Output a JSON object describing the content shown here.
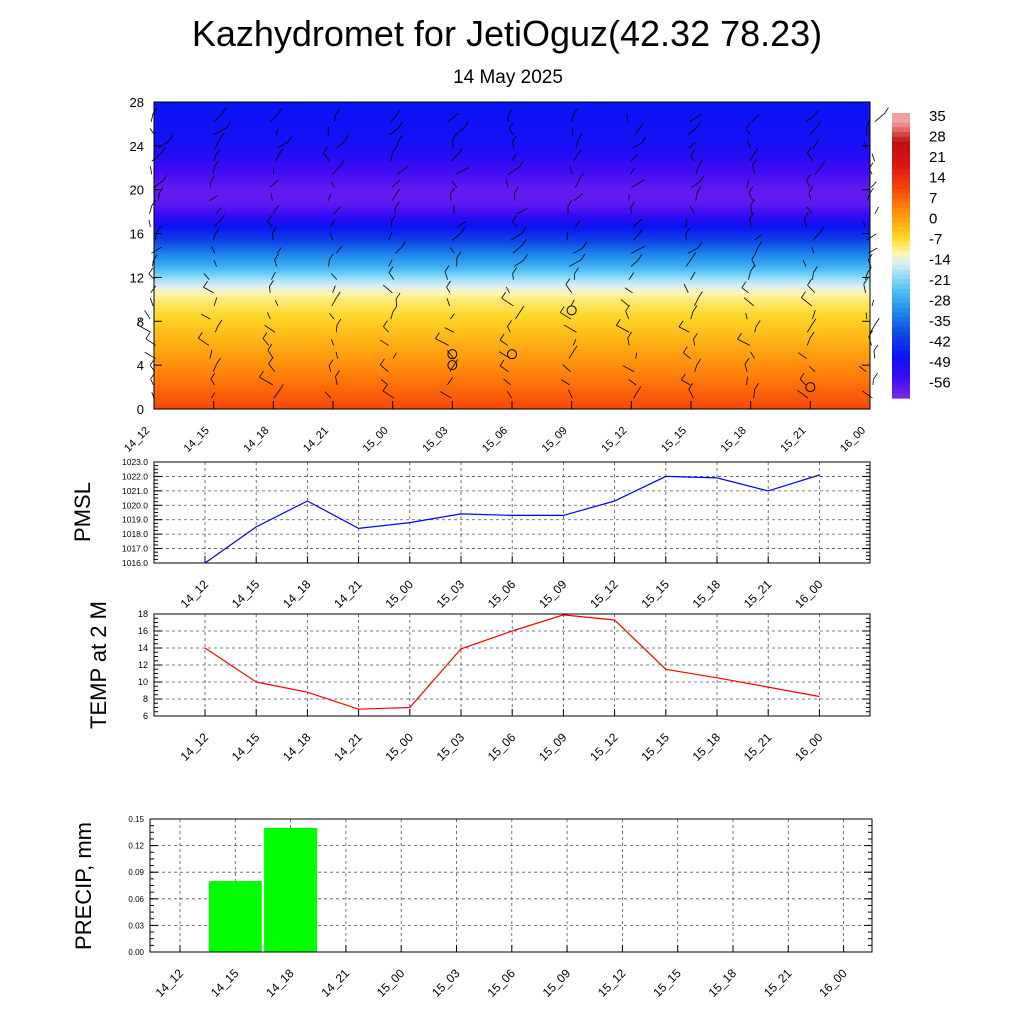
{
  "header": {
    "title": "Kazhydromet for JetiOguz(42.32 78.23)",
    "subtitle": "14 May 2025"
  },
  "colors": {
    "pmsl_line": "#0000ff",
    "temp_line": "#ff0000",
    "precip_bar": "#00ff00",
    "wind_barb": "#000000"
  },
  "chart_data": [
    {
      "type": "heatmap",
      "name": "upper-air temperature cross-section with wind barbs",
      "x_categories": [
        "14_12",
        "14_15",
        "14_18",
        "14_21",
        "15_00",
        "15_03",
        "15_06",
        "15_09",
        "15_12",
        "15_15",
        "15_18",
        "15_21",
        "16_00"
      ],
      "y_ticks": [
        0,
        4,
        8,
        12,
        16,
        20,
        24,
        28
      ],
      "ylim": [
        0,
        28
      ],
      "colorbar": {
        "labels": [
          "35",
          "28",
          "21",
          "14",
          "7",
          "0",
          "-7",
          "-14",
          "-21",
          "-28",
          "-35",
          "-42",
          "-49",
          "-56"
        ],
        "range": [
          -60,
          38
        ]
      },
      "temperature_profile": {
        "levels": [
          0,
          2,
          4,
          6,
          8,
          10,
          11,
          12,
          13,
          14,
          15,
          16,
          17,
          18,
          19,
          20,
          21,
          22,
          23,
          24,
          28
        ],
        "values": [
          12,
          8,
          4,
          0,
          -4,
          -8,
          -12,
          -18,
          -25,
          -30,
          -36,
          -42,
          -48,
          -54,
          -57,
          -57,
          -55,
          -53,
          -50,
          -48,
          -46
        ]
      },
      "calm_markers": [
        {
          "x": "15_03",
          "y": 5.0
        },
        {
          "x": "15_03",
          "y": 4.0
        },
        {
          "x": "15_06",
          "y": 5.0
        },
        {
          "x": "15_09",
          "y": 9.0
        },
        {
          "x": "15_21",
          "y": 2.0
        }
      ],
      "grid": false
    },
    {
      "type": "line",
      "ylabel": "PMSL",
      "categories": [
        "14_12",
        "14_15",
        "14_18",
        "14_21",
        "15_00",
        "15_03",
        "15_06",
        "15_09",
        "15_12",
        "15_15",
        "15_18",
        "15_21",
        "16_00"
      ],
      "values": [
        1016.0,
        1018.5,
        1020.3,
        1018.4,
        1018.8,
        1019.4,
        1019.3,
        1019.3,
        1020.3,
        1022.0,
        1021.9,
        1021.0,
        1022.1
      ],
      "ylim": [
        1016,
        1023
      ],
      "yticks": [
        "1016.0",
        "1017.0",
        "1018.0",
        "1019.0",
        "1020.0",
        "1021.0",
        "1022.0",
        "1023.0"
      ],
      "grid": true
    },
    {
      "type": "line",
      "ylabel": "TEMP at 2 M",
      "categories": [
        "14_12",
        "14_15",
        "14_18",
        "14_21",
        "15_00",
        "15_03",
        "15_06",
        "15_09",
        "15_12",
        "15_15",
        "15_18",
        "15_21",
        "16_00"
      ],
      "values": [
        14.0,
        10.0,
        8.8,
        6.8,
        7.0,
        13.9,
        16.0,
        17.9,
        17.3,
        11.5,
        10.5,
        9.4,
        8.3
      ],
      "ylim": [
        6,
        18
      ],
      "yticks": [
        "6",
        "8",
        "10",
        "12",
        "14",
        "16",
        "18"
      ],
      "grid": true
    },
    {
      "type": "bar",
      "ylabel": "PRECIP, mm",
      "categories": [
        "14_12",
        "14_15",
        "14_18",
        "14_21",
        "15_00",
        "15_03",
        "15_06",
        "15_09",
        "15_12",
        "15_15",
        "15_18",
        "15_21",
        "16_00"
      ],
      "values": [
        0,
        0.08,
        0.14,
        0,
        0,
        0,
        0,
        0,
        0,
        0,
        0,
        0,
        0
      ],
      "ylim": [
        0,
        0.15
      ],
      "yticks": [
        "0.00",
        "0.03",
        "0.06",
        "0.09",
        "0.12",
        "0.15"
      ],
      "grid": true
    }
  ]
}
